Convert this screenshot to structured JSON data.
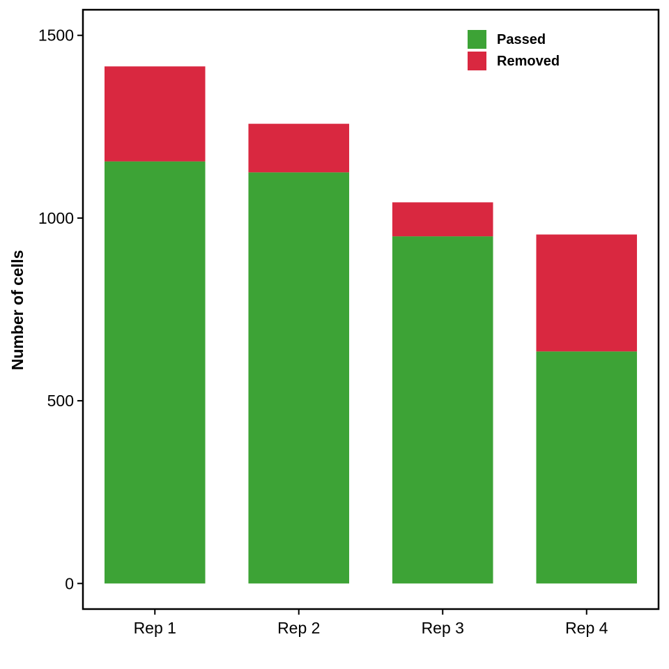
{
  "chart_data": {
    "type": "bar",
    "stacked": true,
    "categories": [
      "Rep 1",
      "Rep 2",
      "Rep 3",
      "Rep 4"
    ],
    "series": [
      {
        "name": "Passed",
        "values": [
          1155,
          1125,
          950,
          635
        ],
        "color": "#3da336"
      },
      {
        "name": "Removed",
        "values": [
          260,
          133,
          93,
          320
        ],
        "color": "#d92840"
      }
    ],
    "title": "",
    "xlabel": "",
    "ylabel": "Number of cells",
    "ylim": [
      -70,
      1570
    ],
    "yticks": [
      0,
      500,
      1000,
      1500
    ],
    "ytick_labels": [
      "0",
      "500",
      "1000",
      "1500"
    ],
    "grid": false,
    "legend_position": "top-right"
  }
}
